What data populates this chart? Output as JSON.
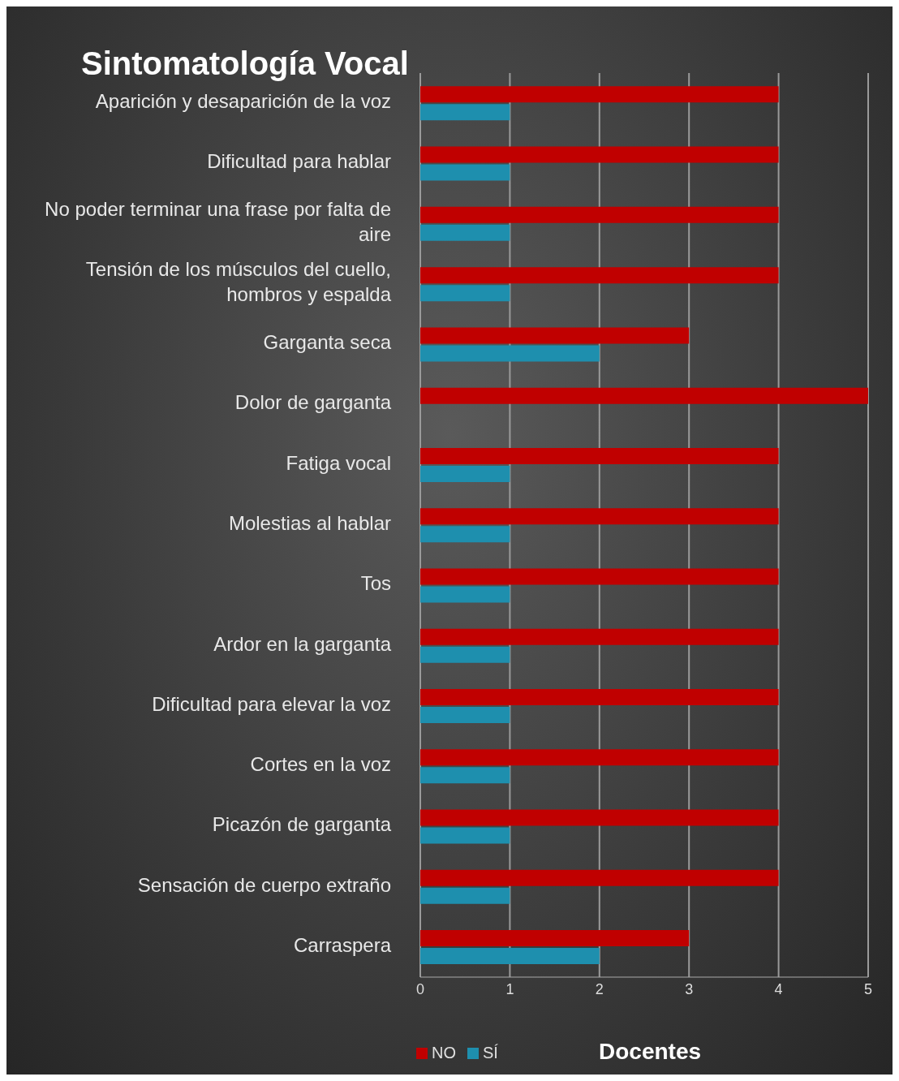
{
  "chart_data": {
    "type": "bar",
    "orientation": "horizontal",
    "title": "Sintomatología Vocal",
    "xlabel": "Docentes",
    "categories": [
      "Aparición y desaparición de la voz",
      "Dificultad para hablar",
      "No poder terminar una frase por falta de aire",
      "Tensión de los músculos del cuello, hombros y espalda",
      "Garganta seca",
      "Dolor de garganta",
      "Fatiga vocal",
      "Molestias al hablar",
      "Tos",
      "Ardor en la garganta",
      "Dificultad para elevar la voz",
      "Cortes en la voz",
      "Picazón de garganta",
      "Sensación de cuerpo extraño",
      "Carraspera"
    ],
    "series": [
      {
        "name": "NO",
        "color": "#c00000",
        "values": [
          4,
          4,
          4,
          4,
          3,
          5,
          4,
          4,
          4,
          4,
          4,
          4,
          4,
          4,
          3
        ]
      },
      {
        "name": "SÍ",
        "color": "#1e8fae",
        "values": [
          1,
          1,
          1,
          1,
          2,
          0,
          1,
          1,
          1,
          1,
          1,
          1,
          1,
          1,
          2
        ]
      }
    ],
    "xlim": [
      0,
      5
    ],
    "xticks": [
      0,
      1,
      2,
      3,
      4,
      5
    ],
    "grid": "x",
    "legend": "bottom left"
  }
}
